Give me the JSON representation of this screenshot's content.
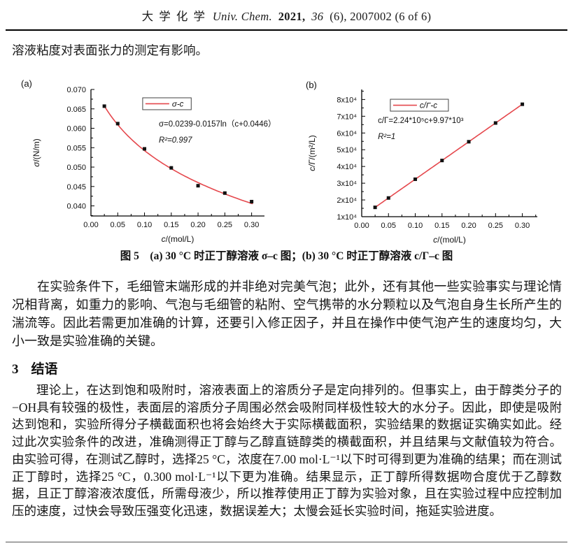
{
  "page": {
    "header": {
      "journal_cn": "大 学 化 学",
      "journal_en": "Univ. Chem.",
      "year": "2021,",
      "volume": "36",
      "issue_info": "(6), 2007002 (6 of 6)"
    },
    "intro_line": "溶液粘度对表面张力的测定有影响。",
    "figure_caption": "图 5　(a) 30 °C 时正丁醇溶液 σ–c 图；(b) 30 °C 时正丁醇溶液 c/Γ–c 图",
    "paragraph_1": "在实验条件下，毛细管末端形成的并非绝对完美气泡；此外，还有其他一些实验事实与理论情况相背离，如重力的影响、气泡与毛细管的粘附、空气携带的水分颗粒以及气泡自身生长所产生的湍流等。因此若需更加准确的计算，还要引入修正因子，并且在操作中使气泡产生的速度均匀，大小一致是实验准确的关键。",
    "section_heading": {
      "number": "3",
      "title": "结语"
    },
    "paragraph_2": "理论上，在达到饱和吸附时，溶液表面上的溶质分子是定向排列的。但事实上，由于醇类分子的−OH具有较强的极性，表面层的溶质分子周围必然会吸附同样极性较大的水分子。因此，即使是吸附达到饱和，实验所得分子横截面积也将会始终大于实际横截面积，实验结果的数据证实确实如此。经过此次实验条件的改进，准确测得正丁醇与乙醇直链醇类的横截面积，并且结果与文献值较为符合。由实验可得，在测试乙醇时，选择25 °C，浓度在7.00 mol·L⁻¹以下时可得到更为准确的结果；而在测试正丁醇时，选择25 °C，0.300 mol·L⁻¹以下更为准确。结果显示，正丁醇所得数据吻合度优于乙醇数据，且正丁醇溶液浓度低，所需母液少，所以推荐使用正丁醇为实验对象，且在实验过程中应控制加压的速度，过快会导致压强变化迅速，数据误差大；太慢会延长实验时间，拖延实验进度。"
  },
  "colors": {
    "curve_red": "#e5484d",
    "axis_black": "#000000"
  },
  "chart_data": [
    {
      "panel": "(a)",
      "type": "scatter",
      "title": "",
      "legend": "σ-c",
      "legend_position": "top-center",
      "grid": false,
      "x": [
        0.025,
        0.05,
        0.1,
        0.15,
        0.2,
        0.25,
        0.3
      ],
      "y": [
        0.0657,
        0.0612,
        0.0547,
        0.0498,
        0.0452,
        0.0433,
        0.0411
      ],
      "fit": {
        "kind": "log",
        "p0": 0.0239,
        "p1": -0.0157,
        "p2": 0.0446,
        "x_start": 0.024,
        "x_end": 0.302,
        "formula": "σ=0.0239-0.0157ln（c+0.0446）"
      },
      "r2": "R²=0.997",
      "xlabel": "c/(mol/L)",
      "ylabel": "σ/(N/m)",
      "xlim": [
        0,
        0.324
      ],
      "ylim": [
        0.0374,
        0.07
      ],
      "xticks": [
        {
          "v": 0.0,
          "label": "0.00"
        },
        {
          "v": 0.05,
          "label": "0.05"
        },
        {
          "v": 0.1,
          "label": "0.10"
        },
        {
          "v": 0.15,
          "label": "0.15"
        },
        {
          "v": 0.2,
          "label": "0.20"
        },
        {
          "v": 0.25,
          "label": "0.25"
        },
        {
          "v": 0.3,
          "label": "0.30"
        }
      ],
      "yticks": [
        {
          "v": 0.04,
          "label": "0.040"
        },
        {
          "v": 0.045,
          "label": "0.045"
        },
        {
          "v": 0.05,
          "label": "0.050"
        },
        {
          "v": 0.055,
          "label": "0.055"
        },
        {
          "v": 0.06,
          "label": "0.060"
        },
        {
          "v": 0.065,
          "label": "0.065"
        },
        {
          "v": 0.07,
          "label": "0.070"
        }
      ],
      "legend_pos": [
        0.298,
        0.066
      ],
      "ann_pos": [
        0.391,
        0.293
      ]
    },
    {
      "panel": "(b)",
      "type": "scatter",
      "title": "",
      "legend": "c/Γ-c",
      "legend_position": "top-left",
      "grid": false,
      "x": [
        0.025,
        0.05,
        0.1,
        0.15,
        0.2,
        0.25,
        0.3
      ],
      "y": [
        15570,
        21170,
        32370,
        43570,
        54770,
        65970,
        77170
      ],
      "fit": {
        "kind": "linear",
        "slope": 224000,
        "intercept": 9970,
        "x_start": 0.025,
        "x_end": 0.3,
        "formula": "c/Γ=2.24*10⁵c+9.97*10³"
      },
      "r2": "R²=1",
      "xlabel": "c/(mol/L)",
      "ylabel": "c/Γ/(m²/L)",
      "xlim": [
        0,
        0.328
      ],
      "ylim": [
        10000,
        86000
      ],
      "xticks": [
        {
          "v": 0.0,
          "label": "0.00"
        },
        {
          "v": 0.05,
          "label": "0.05"
        },
        {
          "v": 0.1,
          "label": "0.10"
        },
        {
          "v": 0.15,
          "label": "0.15"
        },
        {
          "v": 0.2,
          "label": "0.20"
        },
        {
          "v": 0.25,
          "label": "0.25"
        },
        {
          "v": 0.3,
          "label": "0.30"
        }
      ],
      "yticks": [
        {
          "v": 10000,
          "label": "1x10⁴"
        },
        {
          "v": 20000,
          "label": "2x10⁴"
        },
        {
          "v": 30000,
          "label": "3x10⁴"
        },
        {
          "v": 40000,
          "label": "4x10⁴"
        },
        {
          "v": 50000,
          "label": "5x10⁴"
        },
        {
          "v": 60000,
          "label": "6x10⁴"
        },
        {
          "v": 70000,
          "label": "7x10⁴"
        },
        {
          "v": 80000,
          "label": "8x10⁴"
        }
      ],
      "legend_pos": [
        0.163,
        0.077
      ],
      "ann_pos": [
        0.092,
        0.264
      ]
    }
  ]
}
